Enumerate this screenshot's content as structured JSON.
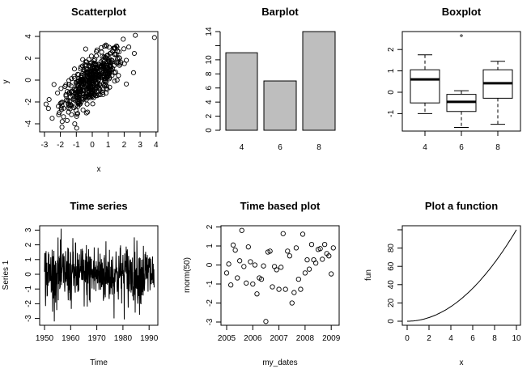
{
  "chart_data": [
    {
      "id": "scatter",
      "type": "scatter",
      "title": "Scatterplot",
      "xlabel": "x",
      "ylabel": "y",
      "xlim": [
        -3.3,
        4.1
      ],
      "ylim": [
        -4.6,
        4.5
      ],
      "xticks": [
        -3,
        -2,
        -1,
        0,
        1,
        2,
        3,
        4
      ],
      "yticks": [
        -4,
        -2,
        0,
        2,
        4
      ],
      "description": "~500 points bivariate normal, positive correlation",
      "outliers": [
        [
          3.9,
          3.9
        ],
        [
          2.7,
          4.1
        ],
        [
          -1.9,
          -4.3
        ],
        [
          -1.1,
          -4.0
        ],
        [
          -2.9,
          -2.2
        ],
        [
          -2.4,
          -0.4
        ]
      ],
      "n_points": 500,
      "correlation": 0.7
    },
    {
      "id": "bar",
      "type": "bar",
      "title": "Barplot",
      "categories": [
        "4",
        "6",
        "8"
      ],
      "values": [
        11,
        7,
        14
      ],
      "yticks": [
        0,
        2,
        4,
        6,
        8,
        10,
        12,
        14
      ],
      "ytick_labels": [
        "0",
        "2",
        "4",
        "6",
        "8",
        "10",
        "",
        "14"
      ],
      "ylim": [
        0,
        14
      ],
      "bar_color": "#bebebe"
    },
    {
      "id": "box",
      "type": "box",
      "title": "Boxplot",
      "categories": [
        "4",
        "6",
        "8"
      ],
      "yticks": [
        -1,
        0,
        1,
        2
      ],
      "ylim": [
        -1.8,
        2.9
      ],
      "boxes": [
        {
          "group": "4",
          "whisker_low": -1.0,
          "q1": -0.5,
          "median": 0.6,
          "q3": 1.05,
          "whisker_high": 1.75
        },
        {
          "group": "6",
          "whisker_low": -1.65,
          "q1": -0.9,
          "median": -0.45,
          "q3": -0.1,
          "whisker_high": 0.07,
          "outliers": [
            2.65
          ]
        },
        {
          "group": "8",
          "whisker_low": -1.5,
          "q1": -0.28,
          "median": 0.42,
          "q3": 1.05,
          "whisker_high": 1.45
        }
      ]
    },
    {
      "id": "ts",
      "type": "line",
      "title": "Time series",
      "xlabel": "Time",
      "ylabel": "Series 1",
      "xticks": [
        1950,
        1960,
        1970,
        1980,
        1990
      ],
      "yticks": [
        -3,
        -2,
        -1,
        0,
        1,
        2,
        3
      ],
      "xlim": [
        1948.3,
        1993.3
      ],
      "ylim": [
        -3.3,
        3.3
      ],
      "description": "monthly white noise series 1950-1992, values ranging roughly -3.2 to 3.1"
    },
    {
      "id": "dates",
      "type": "scatter",
      "title": "Time based plot",
      "xlabel": "my_dates",
      "ylabel": "rnorm(50)",
      "xticks": [
        "2005",
        "2006",
        "2007",
        "2008",
        "2009"
      ],
      "yticks": [
        -3,
        -2,
        -1,
        0,
        1,
        2
      ],
      "x": [
        2005.0,
        2005.08,
        2005.16,
        2005.25,
        2005.33,
        2005.41,
        2005.5,
        2005.58,
        2005.66,
        2005.75,
        2005.83,
        2005.91,
        2006.0,
        2006.08,
        2006.16,
        2006.25,
        2006.33,
        2006.41,
        2006.5,
        2006.58,
        2006.66,
        2006.75,
        2006.83,
        2006.91,
        2007.0,
        2007.08,
        2007.16,
        2007.25,
        2007.33,
        2007.41,
        2007.5,
        2007.58,
        2007.66,
        2007.75,
        2007.83,
        2007.91,
        2008.0,
        2008.08,
        2008.16,
        2008.25,
        2008.33,
        2008.41,
        2008.5,
        2008.58,
        2008.66,
        2008.75,
        2008.83,
        2008.91,
        2009.0,
        2009.08
      ],
      "y": [
        -0.42,
        0.05,
        -1.05,
        1.05,
        0.78,
        -0.68,
        0.22,
        1.82,
        -0.08,
        -0.95,
        0.95,
        0.17,
        -1.0,
        0.0,
        -1.52,
        -0.68,
        -0.75,
        -0.05,
        -2.97,
        0.68,
        0.73,
        -1.15,
        -0.08,
        -0.25,
        -1.28,
        -0.12,
        1.65,
        -1.28,
        0.73,
        0.48,
        -2.0,
        -1.45,
        0.9,
        -0.75,
        -1.28,
        1.62,
        -0.42,
        0.27,
        -0.22,
        1.08,
        0.27,
        0.1,
        0.82,
        0.86,
        0.3,
        1.08,
        0.6,
        0.48,
        -0.47,
        0.9
      ]
    },
    {
      "id": "fun",
      "type": "line",
      "title": "Plot a function",
      "xlabel": "x",
      "ylabel": "fun",
      "xticks": [
        0,
        2,
        4,
        6,
        8,
        10
      ],
      "yticks": [
        0,
        20,
        40,
        60,
        80,
        100
      ],
      "ytick_labels": [
        "0",
        "20",
        "40",
        "60",
        "80",
        ""
      ],
      "function": "x^2",
      "xlim": [
        0,
        10
      ]
    }
  ]
}
